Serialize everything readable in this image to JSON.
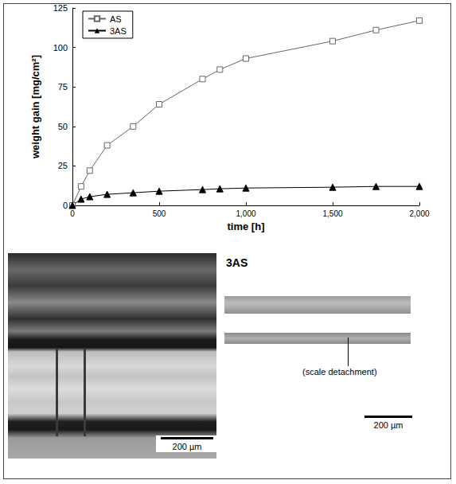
{
  "chart_data": {
    "type": "line",
    "x_label": "time [h]",
    "y_label": "weight gain [mg/cm²]",
    "x": [
      0,
      50,
      100,
      200,
      350,
      500,
      750,
      850,
      1000,
      1500,
      1750,
      2000
    ],
    "xlim": [
      0,
      2000
    ],
    "xticks": [
      0,
      500,
      1000,
      1500,
      2000
    ],
    "ylim": [
      0,
      125
    ],
    "yticks": [
      0,
      25,
      50,
      75,
      100,
      125
    ],
    "grid": false,
    "legend": "upper left",
    "series": [
      {
        "name": "AS",
        "color": "#666666",
        "marker": "open_square",
        "line_style": "solid",
        "values": [
          0,
          12,
          22,
          38,
          50,
          64,
          80,
          86,
          93,
          104,
          111,
          117
        ]
      },
      {
        "name": "3AS",
        "color": "#000000",
        "marker": "triangle",
        "line_style": "solid",
        "values": [
          0,
          4,
          5.5,
          7,
          8,
          9,
          10,
          10.5,
          11,
          11.5,
          12,
          12
        ]
      }
    ]
  },
  "micrographs": [
    {
      "scale_bar": "200 µm"
    },
    {
      "title": "3AS",
      "annotation": "(scale detachment)",
      "scale_bar": "200 µm"
    }
  ]
}
